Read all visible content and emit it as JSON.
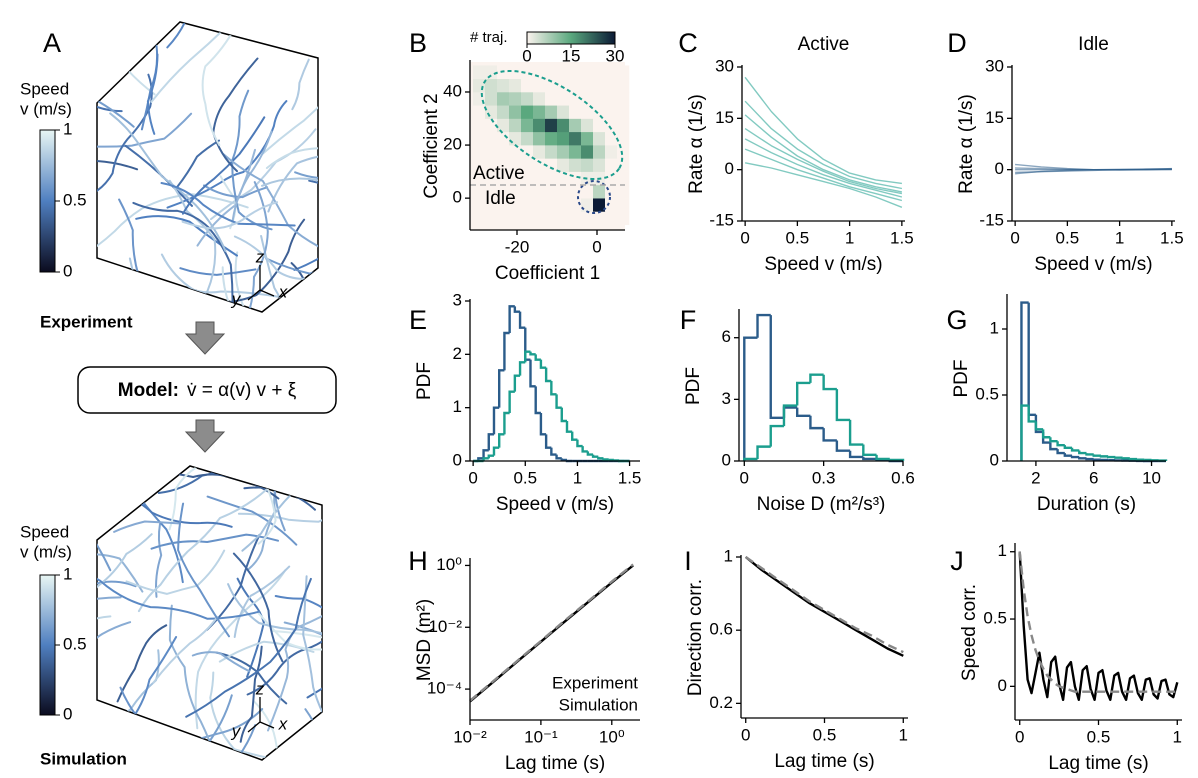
{
  "panel_a": {
    "label": "A",
    "colorbar_title": [
      "Speed",
      "v (m/s)"
    ],
    "colorbar_ticks": [
      0,
      0.5,
      1
    ],
    "clim": [
      0,
      1
    ],
    "colors": [
      "#0b0b1e",
      "#4f7fc0",
      "#e8f6f4"
    ],
    "top_label": "Experiment",
    "bottom_label": "Simulation",
    "model_label": "Model:",
    "model_equation": "v̇ = α(v) v + ξ",
    "axes": [
      "z",
      "y",
      "x"
    ]
  },
  "chart_data": [
    {
      "label": "B",
      "type": "heatmap",
      "xlabel": "Coefficient 1",
      "ylabel": "Coefficient 2",
      "xbins": [
        -31,
        -28,
        -25,
        -22,
        -19,
        -16,
        -13,
        -10,
        -7,
        -4,
        -1,
        2,
        5,
        8
      ],
      "ybins": [
        -10,
        -5,
        0,
        5,
        10,
        15,
        20,
        25,
        30,
        35,
        40,
        45,
        50
      ],
      "counts": [
        [
          0,
          0,
          0,
          0,
          0,
          0,
          0,
          0,
          0,
          0,
          0,
          0,
          0
        ],
        [
          0,
          0,
          0,
          0,
          0,
          0,
          0,
          0,
          0,
          1,
          30,
          0,
          0
        ],
        [
          0,
          0,
          0,
          0,
          0,
          0,
          0,
          0,
          0,
          0,
          6,
          0,
          0
        ],
        [
          0,
          0,
          0,
          0,
          0,
          0,
          0,
          0,
          0,
          1,
          1,
          0,
          0
        ],
        [
          0,
          0,
          0,
          0,
          0,
          0,
          0,
          2,
          4,
          5,
          3,
          0,
          0
        ],
        [
          0,
          0,
          0,
          0,
          0,
          2,
          5,
          8,
          12,
          18,
          6,
          1,
          0
        ],
        [
          0,
          0,
          0,
          2,
          5,
          10,
          14,
          16,
          20,
          12,
          3,
          0,
          0
        ],
        [
          0,
          0,
          2,
          6,
          12,
          18,
          26,
          18,
          8,
          3,
          0,
          0,
          0
        ],
        [
          0,
          2,
          5,
          10,
          15,
          12,
          8,
          3,
          0,
          0,
          0,
          0,
          0
        ],
        [
          1,
          4,
          8,
          7,
          5,
          2,
          0,
          0,
          0,
          0,
          0,
          0,
          0
        ],
        [
          2,
          4,
          3,
          2,
          0,
          0,
          0,
          0,
          0,
          0,
          0,
          0,
          0
        ],
        [
          1,
          1,
          0,
          0,
          0,
          0,
          0,
          0,
          0,
          0,
          0,
          0,
          0
        ]
      ],
      "colorbar_title": "# traj.",
      "clim": [
        0,
        30
      ],
      "colorbar_ticks": [
        0,
        15,
        30
      ],
      "colors": [
        "#fbf3ee",
        "#5aa87e",
        "#0b1a35"
      ],
      "annotations": [
        "Active",
        "Idle"
      ],
      "annotation_colors": [
        "#1b9e8e",
        "#2b5c8a"
      ],
      "xlim": [
        -31.75,
        7
      ],
      "ylim": [
        -12,
        51.3
      ],
      "xticks": [
        -20,
        0
      ],
      "yticks": [
        0,
        20,
        40
      ]
    },
    {
      "label": "C",
      "type": "line",
      "title": "Active",
      "title_color": "#1b9e8e",
      "xlabel": "Speed v (m/s)",
      "ylabel": "Rate α (1/s)",
      "x": [
        0,
        0.25,
        0.5,
        0.75,
        1,
        1.25,
        1.5
      ],
      "series": [
        {
          "color": "#1b9e8e",
          "values": [
            27,
            17,
            9,
            3,
            -1,
            -3,
            -4
          ]
        },
        {
          "color": "#1b9e8e",
          "values": [
            20,
            12,
            6,
            1.5,
            -2,
            -4,
            -5.5
          ]
        },
        {
          "color": "#1b9e8e",
          "values": [
            16,
            9.5,
            4,
            0,
            -3,
            -5,
            -6.5
          ]
        },
        {
          "color": "#1b9e8e",
          "values": [
            12,
            7,
            3,
            -0.5,
            -3.5,
            -5.5,
            -7
          ]
        },
        {
          "color": "#1b9e8e",
          "values": [
            9,
            5,
            1.5,
            -1.5,
            -4,
            -6,
            -8
          ]
        },
        {
          "color": "#1b9e8e",
          "values": [
            6,
            3,
            0,
            -2.5,
            -5,
            -7,
            -9
          ]
        },
        {
          "color": "#1b9e8e",
          "values": [
            2,
            0.5,
            -1.5,
            -3.5,
            -5.5,
            -8,
            -11
          ]
        }
      ],
      "xlim": [
        -0.03,
        1.53
      ],
      "ylim": [
        -15,
        30
      ],
      "xticks": [
        0,
        0.5,
        1,
        1.5
      ],
      "yticks": [
        -15,
        0,
        15,
        30
      ]
    },
    {
      "label": "D",
      "type": "line",
      "title": "Idle",
      "title_color": "#2b5c8a",
      "xlabel": "Speed v (m/s)",
      "ylabel": "Rate α (1/s)",
      "x": [
        0,
        0.25,
        0.5,
        0.75,
        1,
        1.25,
        1.5
      ],
      "series": [
        {
          "color": "#2b5c8a",
          "values": [
            0.5,
            0.3,
            0.1,
            0,
            0,
            0,
            0.2
          ]
        },
        {
          "color": "#2b5c8a",
          "values": [
            -0.8,
            -0.6,
            -0.4,
            -0.2,
            0,
            0.1,
            0.3
          ]
        },
        {
          "color": "#2b5c8a",
          "values": [
            1.5,
            0.8,
            0.3,
            0,
            -0.1,
            0,
            0.1
          ]
        },
        {
          "color": "#2b5c8a",
          "values": [
            -1.2,
            -0.5,
            -0.2,
            0,
            0.1,
            0.2,
            0.2
          ]
        },
        {
          "color": "#2b5c8a",
          "values": [
            0,
            0,
            0,
            0,
            0,
            0,
            0
          ]
        }
      ],
      "xlim": [
        -0.03,
        1.53
      ],
      "ylim": [
        -15,
        30
      ],
      "xticks": [
        0,
        0.5,
        1,
        1.5
      ],
      "yticks": [
        -15,
        0,
        15,
        30
      ]
    },
    {
      "label": "E",
      "type": "histogram",
      "xlabel": "Speed v (m/s)",
      "ylabel": "PDF",
      "bins": [
        0,
        0.05,
        0.1,
        0.15,
        0.2,
        0.25,
        0.3,
        0.35,
        0.4,
        0.45,
        0.5,
        0.55,
        0.6,
        0.65,
        0.7,
        0.75,
        0.8,
        0.85,
        0.9,
        0.95,
        1,
        1.05,
        1.1,
        1.15,
        1.2,
        1.25,
        1.3,
        1.35,
        1.4,
        1.45,
        1.5
      ],
      "series": [
        {
          "color": "#2b5c8a",
          "values": [
            0,
            0.05,
            0.2,
            0.5,
            1.0,
            1.7,
            2.4,
            2.9,
            2.8,
            2.5,
            1.9,
            1.4,
            0.9,
            0.5,
            0.25,
            0.12,
            0.05,
            0.02,
            0,
            0,
            0,
            0,
            0,
            0,
            0,
            0,
            0,
            0,
            0,
            0
          ]
        },
        {
          "color": "#1b9e8e",
          "values": [
            0,
            0,
            0.05,
            0.1,
            0.25,
            0.5,
            0.9,
            1.3,
            1.6,
            1.85,
            2.05,
            2.0,
            1.9,
            1.75,
            1.5,
            1.25,
            1.0,
            0.75,
            0.55,
            0.4,
            0.28,
            0.18,
            0.12,
            0.08,
            0.05,
            0.03,
            0.02,
            0.01,
            0,
            0
          ]
        }
      ],
      "xlim": [
        -0.03,
        1.6
      ],
      "ylim": [
        0,
        3
      ],
      "xticks": [
        0,
        0.5,
        1,
        1.5
      ],
      "yticks": [
        0,
        1,
        2,
        3
      ]
    },
    {
      "label": "F",
      "type": "histogram",
      "xlabel": "Noise D (m²/s³)",
      "ylabel": "PDF",
      "bins": [
        0,
        0.05,
        0.1,
        0.15,
        0.2,
        0.25,
        0.3,
        0.35,
        0.4,
        0.45,
        0.5,
        0.55,
        0.6
      ],
      "series": [
        {
          "color": "#2b5c8a",
          "values": [
            6.0,
            7.1,
            2.1,
            2.6,
            2.2,
            1.6,
            1.0,
            0.5,
            0.2,
            0.1,
            0.05,
            0
          ]
        },
        {
          "color": "#1b9e8e",
          "values": [
            0.1,
            0.7,
            1.7,
            2.7,
            3.8,
            4.2,
            3.5,
            2.0,
            0.8,
            0.3,
            0.1,
            0.05
          ]
        }
      ],
      "xlim": [
        -0.02,
        0.6
      ],
      "ylim": [
        0,
        7.3
      ],
      "xticks": [
        0,
        0.3,
        0.6
      ],
      "yticks": [
        0,
        3,
        6
      ]
    },
    {
      "label": "G",
      "type": "histogram",
      "xlabel": "Duration (s)",
      "ylabel": "PDF",
      "bins": [
        1,
        1.5,
        2,
        2.5,
        3,
        3.5,
        4,
        4.5,
        5,
        5.5,
        6,
        6.5,
        7,
        7.5,
        8,
        8.5,
        9,
        9.5,
        10,
        10.5,
        11
      ],
      "series": [
        {
          "color": "#2b5c8a",
          "values": [
            1.2,
            0.35,
            0.22,
            0.14,
            0.09,
            0.06,
            0.04,
            0.03,
            0.02,
            0.015,
            0.01,
            0.008,
            0.006,
            0.004,
            0.003,
            0.002,
            0.001,
            0,
            0,
            0
          ]
        },
        {
          "color": "#1b9e8e",
          "values": [
            0.42,
            0.3,
            0.24,
            0.18,
            0.15,
            0.12,
            0.1,
            0.08,
            0.06,
            0.05,
            0.04,
            0.035,
            0.03,
            0.025,
            0.02,
            0.015,
            0.01,
            0.008,
            0.005,
            0.003
          ]
        }
      ],
      "xlim": [
        0,
        11
      ],
      "ylim": [
        0,
        1.25
      ],
      "xticks": [
        2,
        6,
        10
      ],
      "yticks": [
        0,
        0.5,
        1
      ]
    },
    {
      "label": "H",
      "type": "line",
      "xlabel": "Lag time (s)",
      "ylabel": "MSD (m²)",
      "xlog": true,
      "ylog": true,
      "legend": "lower right",
      "x": [
        0.01,
        0.02,
        0.05,
        0.1,
        0.2,
        0.5,
        1,
        2
      ],
      "series": [
        {
          "name": "Experiment",
          "color": "#000000",
          "values": [
            4e-05,
            0.00015,
            0.0009,
            0.0034,
            0.013,
            0.075,
            0.28,
            1.0
          ]
        },
        {
          "name": "Simulation",
          "color": "#888888",
          "dashed": true,
          "values": [
            4.2e-05,
            0.00016,
            0.00095,
            0.0036,
            0.014,
            0.08,
            0.3,
            1.08
          ]
        }
      ],
      "xlim": [
        0.01,
        2.5
      ],
      "ylim": [
        1e-05,
        1.5
      ],
      "xticks": [
        {
          "value": 0.01,
          "label": "10⁻²"
        },
        {
          "value": 0.1,
          "label": "10⁻¹"
        },
        {
          "value": 1,
          "label": "10⁰"
        }
      ],
      "yticks": [
        {
          "value": 0.0001,
          "label": "10⁻⁴"
        },
        {
          "value": 0.01,
          "label": "10⁻²"
        },
        {
          "value": 1,
          "label": "10⁰"
        }
      ]
    },
    {
      "label": "I",
      "type": "line",
      "xlabel": "Lag time (s)",
      "ylabel": "Direction corr.",
      "x": [
        0,
        0.1,
        0.2,
        0.3,
        0.4,
        0.5,
        0.6,
        0.7,
        0.8,
        0.9,
        1
      ],
      "series": [
        {
          "color": "#000000",
          "values": [
            1,
            0.93,
            0.87,
            0.81,
            0.75,
            0.7,
            0.65,
            0.6,
            0.55,
            0.5,
            0.46
          ]
        },
        {
          "color": "#888888",
          "dashed": true,
          "values": [
            1,
            0.94,
            0.88,
            0.82,
            0.76,
            0.71,
            0.66,
            0.61,
            0.57,
            0.52,
            0.48
          ]
        }
      ],
      "xlim": [
        -0.03,
        1.03
      ],
      "ylim": [
        0.12,
        1.0
      ],
      "xticks": [
        0,
        0.5,
        1
      ],
      "yticks": [
        0.2,
        0.6,
        1
      ]
    },
    {
      "label": "J",
      "type": "line",
      "xlabel": "Lag time (s)",
      "ylabel": "Speed corr.",
      "x": [
        0,
        0.025,
        0.05,
        0.075,
        0.1,
        0.125,
        0.15,
        0.175,
        0.2,
        0.225,
        0.25,
        0.275,
        0.3,
        0.325,
        0.35,
        0.375,
        0.4,
        0.425,
        0.45,
        0.475,
        0.5,
        0.525,
        0.55,
        0.575,
        0.6,
        0.625,
        0.65,
        0.675,
        0.7,
        0.725,
        0.75,
        0.775,
        0.8,
        0.825,
        0.85,
        0.875,
        0.9,
        0.925,
        0.95,
        0.975,
        1
      ],
      "series": [
        {
          "color": "#000000",
          "values": [
            1.0,
            0.45,
            0.05,
            -0.05,
            0.1,
            0.25,
            0.05,
            -0.08,
            0.18,
            0.22,
            0.02,
            -0.1,
            0.14,
            0.18,
            0.0,
            -0.1,
            0.12,
            0.15,
            -0.02,
            -0.1,
            0.1,
            0.12,
            -0.03,
            -0.1,
            0.08,
            0.1,
            -0.04,
            -0.1,
            0.06,
            0.08,
            -0.05,
            -0.1,
            0.05,
            0.06,
            -0.06,
            -0.09,
            0.04,
            0.05,
            -0.06,
            -0.08,
            0.03
          ]
        },
        {
          "color": "#888888",
          "dashed": true,
          "values": [
            1.0,
            0.72,
            0.52,
            0.38,
            0.27,
            0.19,
            0.13,
            0.08,
            0.05,
            0.02,
            0.0,
            -0.01,
            -0.02,
            -0.03,
            -0.04,
            -0.04,
            -0.04,
            -0.04,
            -0.04,
            -0.04,
            -0.04,
            -0.04,
            -0.04,
            -0.04,
            -0.04,
            -0.04,
            -0.04,
            -0.04,
            -0.04,
            -0.04,
            -0.04,
            -0.04,
            -0.04,
            -0.04,
            -0.04,
            -0.04,
            -0.04,
            -0.04,
            -0.04,
            -0.04,
            -0.04
          ]
        }
      ],
      "xlim": [
        -0.03,
        1.03
      ],
      "ylim": [
        -0.25,
        1.05
      ],
      "xticks": [
        0,
        0.5,
        1
      ],
      "yticks": [
        0,
        0.5,
        1
      ]
    }
  ]
}
